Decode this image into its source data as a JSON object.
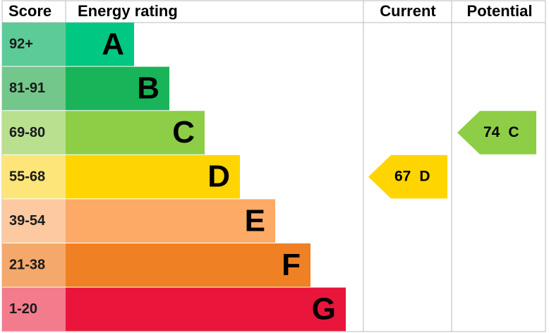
{
  "header": {
    "score": "Score",
    "rating": "Energy rating",
    "current": "Current",
    "potential": "Potential"
  },
  "bands": [
    {
      "score": "92+",
      "letter": "A",
      "color": "#00c781",
      "score_color": "#5ccb98"
    },
    {
      "score": "81-91",
      "letter": "B",
      "color": "#19b459",
      "score_color": "#73c78b"
    },
    {
      "score": "69-80",
      "letter": "C",
      "color": "#8dce46",
      "score_color": "#b8e08f"
    },
    {
      "score": "55-68",
      "letter": "D",
      "color": "#ffd500",
      "score_color": "#fee57a"
    },
    {
      "score": "39-54",
      "letter": "E",
      "color": "#fcaa65",
      "score_color": "#fcc9a1"
    },
    {
      "score": "21-38",
      "letter": "F",
      "color": "#ef8023",
      "score_color": "#f4a86c"
    },
    {
      "score": "1-20",
      "letter": "G",
      "color": "#e9153b",
      "score_color": "#f27b8c"
    }
  ],
  "current": {
    "value": 67,
    "letter": "D"
  },
  "potential": {
    "value": 74,
    "letter": "C"
  }
}
